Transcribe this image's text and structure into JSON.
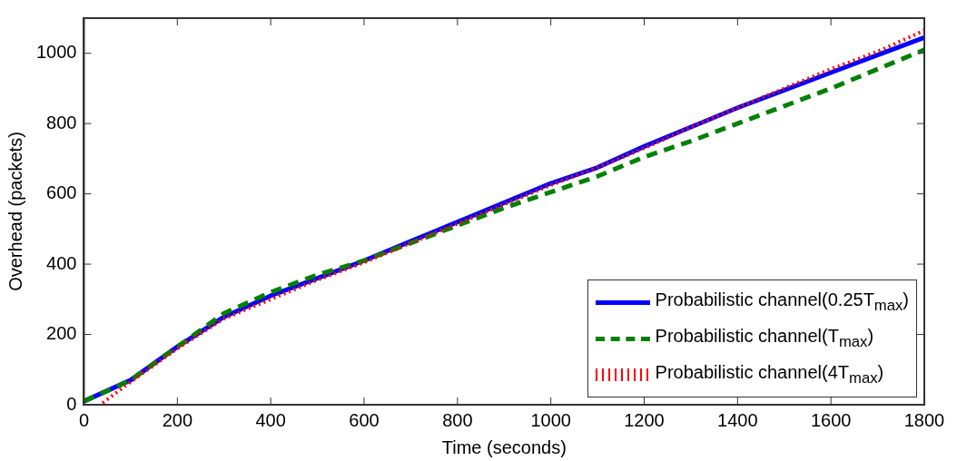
{
  "chart_data": {
    "type": "line",
    "xlabel": "Time (seconds)",
    "ylabel": "Overhead (packets)",
    "xlim": [
      0,
      1800
    ],
    "xticks": [
      0,
      200,
      400,
      600,
      800,
      1000,
      1200,
      1400,
      1600,
      1800
    ],
    "ylim": [
      0,
      1100
    ],
    "yticks": [
      0,
      200,
      400,
      600,
      800,
      1000
    ],
    "grid": false,
    "legend": "bottom right",
    "marker": "none",
    "series": [
      {
        "name": "Probabilistic channel(0.25T$_{max}$)",
        "color": "#0000ff",
        "line_style": "solid",
        "x": [
          0,
          100,
          200,
          300,
          400,
          500,
          600,
          700,
          800,
          900,
          1000,
          1100,
          1200,
          1300,
          1400,
          1500,
          1600,
          1700,
          1800
        ],
        "values": [
          10,
          70,
          165,
          250,
          310,
          360,
          410,
          465,
          520,
          575,
          630,
          675,
          735,
          790,
          845,
          895,
          945,
          995,
          1045
        ]
      },
      {
        "name": "Probabilistic channel(T$_{max}$)",
        "color": "#008000",
        "line_style": "dashed",
        "x": [
          0,
          100,
          200,
          300,
          400,
          500,
          600,
          700,
          800,
          900,
          1000,
          1100,
          1200,
          1300,
          1400,
          1500,
          1600,
          1700,
          1800
        ],
        "values": [
          10,
          70,
          165,
          260,
          320,
          370,
          410,
          460,
          510,
          560,
          605,
          650,
          705,
          750,
          800,
          850,
          900,
          955,
          1010
        ]
      },
      {
        "name": "Probabilistic channel(4T$_{max}$)",
        "color": "#ff0000",
        "line_style": "dotted",
        "x": [
          40,
          100,
          200,
          300,
          400,
          500,
          600,
          700,
          800,
          900,
          1000,
          1100,
          1200,
          1300,
          1400,
          1500,
          1600,
          1700,
          1800
        ],
        "values": [
          5,
          65,
          160,
          245,
          300,
          355,
          405,
          460,
          515,
          570,
          625,
          675,
          730,
          790,
          845,
          900,
          955,
          1005,
          1065
        ]
      }
    ]
  }
}
